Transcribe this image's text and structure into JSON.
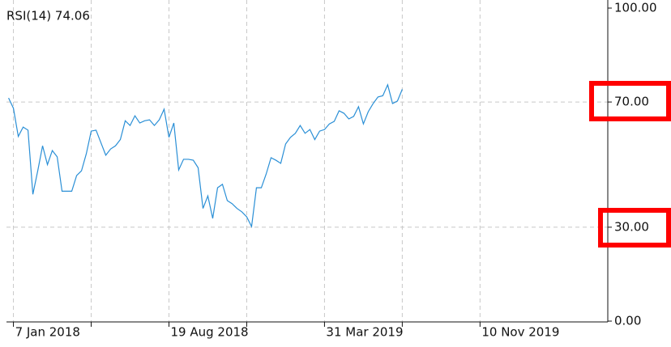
{
  "chart_data": {
    "type": "line",
    "title": "RSI(14) 74.06",
    "x": [
      "2017-12-31",
      "2018-01-07",
      "2018-01-14",
      "2018-01-21",
      "2018-01-28",
      "2018-02-04",
      "2018-02-11",
      "2018-02-18",
      "2018-02-25",
      "2018-03-04",
      "2018-03-11",
      "2018-03-18",
      "2018-03-25",
      "2018-04-01",
      "2018-04-08",
      "2018-04-15",
      "2018-04-22",
      "2018-04-29",
      "2018-05-06",
      "2018-05-13",
      "2018-05-20",
      "2018-05-27",
      "2018-06-03",
      "2018-06-10",
      "2018-06-17",
      "2018-06-24",
      "2018-07-01",
      "2018-07-08",
      "2018-07-15",
      "2018-07-22",
      "2018-07-29",
      "2018-08-05",
      "2018-08-12",
      "2018-08-19",
      "2018-08-26",
      "2018-09-02",
      "2018-09-09",
      "2018-09-16",
      "2018-09-23",
      "2018-09-30",
      "2018-10-07",
      "2018-10-14",
      "2018-10-21",
      "2018-10-28",
      "2018-11-04",
      "2018-11-11",
      "2018-11-18",
      "2018-11-25",
      "2018-12-02",
      "2018-12-09",
      "2018-12-16",
      "2018-12-23",
      "2018-12-30",
      "2019-01-06",
      "2019-01-13",
      "2019-01-20",
      "2019-01-27",
      "2019-02-03",
      "2019-02-10",
      "2019-02-17",
      "2019-02-24",
      "2019-03-03",
      "2019-03-10",
      "2019-03-17",
      "2019-03-24",
      "2019-03-31",
      "2019-04-07",
      "2019-04-14",
      "2019-04-21",
      "2019-04-28",
      "2019-05-05",
      "2019-05-12",
      "2019-05-19",
      "2019-05-26",
      "2019-06-02",
      "2019-06-09",
      "2019-06-16",
      "2019-06-23",
      "2019-06-30",
      "2019-07-07",
      "2019-07-14",
      "2019-07-21"
    ],
    "series": [
      {
        "name": "RSI(14)",
        "color": "#2a8fd6",
        "values": [
          71.3,
          68,
          59,
          62,
          61,
          40.5,
          48,
          56,
          50,
          54.5,
          52.5,
          41.5,
          41.5,
          41.5,
          46.5,
          48,
          53.5,
          60.7,
          61,
          57,
          53,
          55,
          56,
          58,
          64,
          62.5,
          65.6,
          63.3,
          64,
          64.3,
          62.5,
          64.3,
          67.7,
          58.7,
          63.3,
          48.3,
          51.7,
          51.7,
          51.4,
          49,
          36,
          40,
          32.8,
          42.6,
          43.7,
          38.5,
          37.5,
          36,
          34.9,
          33.3,
          30.2,
          42.6,
          42.6,
          47,
          52.2,
          51.4,
          50.4,
          56.6,
          58.7,
          60,
          62.5,
          60,
          61.2,
          58,
          60.7,
          61.2,
          63,
          63.8,
          67.2,
          66.4,
          64.6,
          65.4,
          68.5,
          63,
          66.9,
          69.5,
          71.6,
          72,
          75.5,
          69.5,
          70.3,
          74.06
        ]
      }
    ],
    "xlim": [
      "2017-12-28",
      "2020-05-12"
    ],
    "xticks": [
      {
        "value": "2018-01-07",
        "label": "7 Jan 2018"
      },
      {
        "value": "2018-04-29",
        "label": null
      },
      {
        "value": "2018-08-19",
        "label": "19 Aug 2018"
      },
      {
        "value": "2018-12-09",
        "label": null
      },
      {
        "value": "2019-03-31",
        "label": "31 Mar 2019"
      },
      {
        "value": "2019-07-21",
        "label": null
      },
      {
        "value": "2019-11-10",
        "label": "10 Nov 2019"
      }
    ],
    "ylim": [
      0,
      100
    ],
    "yticks": [
      {
        "value": 0,
        "label": "0.00"
      },
      {
        "value": 30,
        "label": "30.00"
      },
      {
        "value": 70,
        "label": "70.00"
      },
      {
        "value": 100,
        "label": "100.00"
      }
    ],
    "grid": true
  }
}
